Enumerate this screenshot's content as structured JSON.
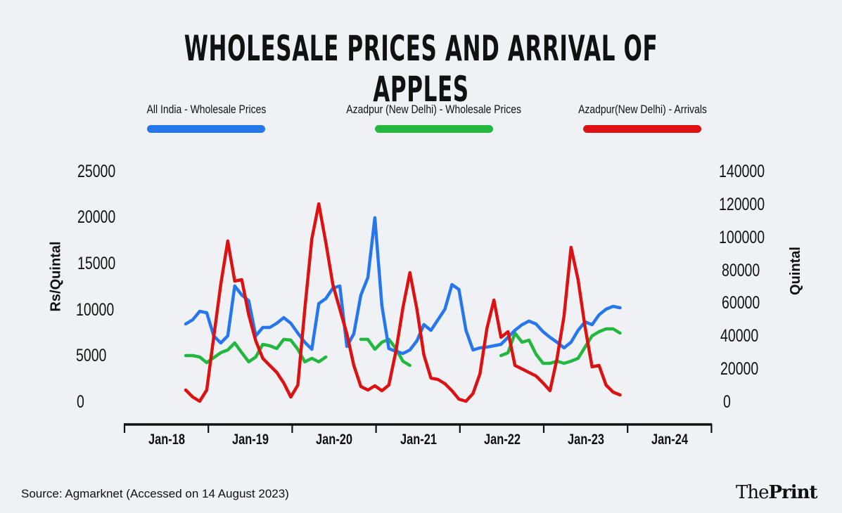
{
  "chart_data": {
    "type": "line",
    "title": "WHOLESALE PRICES AND ARRIVAL OF APPLES",
    "xlabel": "",
    "ylabel_left": "Rs/Quintal",
    "ylabel_right": "Quintal",
    "x_tick_labels": [
      "Jan-18",
      "Jan-19",
      "Jan-20",
      "Jan-21",
      "Jan-22",
      "Jan-23",
      "Jan-24"
    ],
    "y_left_ticks": [
      "25000",
      "20000",
      "15000",
      "10000",
      "5000",
      "0"
    ],
    "y_right_ticks": [
      "140000",
      "120000",
      "100000",
      "80000",
      "60000",
      "40000",
      "20000",
      "0"
    ],
    "ylim_left": [
      0,
      25000
    ],
    "ylim_right": [
      0,
      140000
    ],
    "legend_position": "top",
    "grid": false,
    "x_start_month": "2018-04",
    "series": [
      {
        "name": "All India - Wholesale Prices",
        "axis": "left",
        "color": "#2677ee",
        "values": [
          8460,
          8920,
          9830,
          9680,
          7170,
          6400,
          7170,
          12580,
          11590,
          10980,
          7170,
          8080,
          8080,
          8540,
          9150,
          8540,
          7470,
          6480,
          5720,
          10670,
          11210,
          12350,
          12580,
          6020,
          7390,
          11590,
          13500,
          19980,
          10440,
          5790,
          5490,
          5260,
          5640,
          6630,
          8390,
          7770,
          8920,
          10060,
          12730,
          12200,
          7780,
          5640,
          5870,
          5950,
          6100,
          6250,
          7010,
          7780,
          8380,
          8770,
          8460,
          7620,
          7010,
          6480,
          5870,
          6480,
          7770,
          8690,
          8380,
          9450,
          10060,
          10370,
          10210
        ]
      },
      {
        "name": "Azadpur (New Delhi) - Wholesale Prices",
        "axis": "left",
        "color": "#22b73f",
        "values": [
          5030,
          5030,
          4880,
          4270,
          4800,
          5340,
          5640,
          6400,
          5340,
          4350,
          4880,
          6250,
          6100,
          5790,
          6790,
          6710,
          5720,
          4350,
          4730,
          4350,
          4880,
          null,
          null,
          null,
          null,
          6790,
          6790,
          5720,
          6480,
          6790,
          5790,
          4420,
          3960,
          null,
          null,
          null,
          null,
          null,
          null,
          null,
          null,
          null,
          null,
          null,
          null,
          5030,
          5340,
          7470,
          6480,
          6710,
          5180,
          4190,
          4190,
          4420,
          4190,
          4420,
          4730,
          5950,
          7170,
          7620,
          7930,
          7930,
          7470
        ]
      },
      {
        "name": "Azadpur(New Delhi) - Arrivals",
        "axis": "right",
        "color": "#dd1111",
        "values": [
          7260,
          2990,
          430,
          7260,
          39260,
          71270,
          97730,
          73410,
          74260,
          52920,
          37130,
          26460,
          22190,
          17930,
          11520,
          2990,
          10240,
          56340,
          99010,
          120350,
          96890,
          71270,
          56340,
          41400,
          22190,
          9390,
          7260,
          9820,
          6830,
          10240,
          30730,
          57190,
          78530,
          56340,
          28600,
          14510,
          13660,
          11100,
          6830,
          1710,
          430,
          5120,
          17070,
          44810,
          61880,
          39260,
          42670,
          22190,
          20060,
          17930,
          15790,
          11520,
          6830,
          26460,
          52070,
          93900,
          74260,
          45670,
          21340,
          22190,
          10240,
          5970,
          4270
        ]
      }
    ]
  },
  "footer": {
    "source": "Source: Agmarknet (Accessed on 14 August 2023)",
    "logo_the": "The",
    "logo_print": "Print"
  }
}
